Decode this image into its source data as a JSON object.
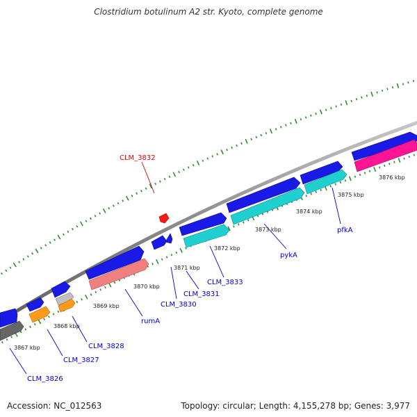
{
  "header": {
    "title": "Clostridium botulinum A2 str. Kyoto, complete genome"
  },
  "footer": {
    "accession": "Accession: NC_012563",
    "topology": "Topology: circular; Length: 4,155,278 bp; Genes: 3,977"
  },
  "colors": {
    "backbone": "#9a9a9a",
    "tick": "#2e8b2e",
    "gene_blue": "#1a1ae6",
    "gene_cyan": "#20d0d0",
    "gene_salmon": "#f08080",
    "gene_orange": "#ff9a1a",
    "gene_gray": "#666666",
    "gene_silver": "#c0c0c0",
    "gene_magenta": "#ff1493",
    "gene_red": "#ff1a1a",
    "label_blue": "#0000cc",
    "label_red": "#dd0000"
  },
  "kbp_labels": [
    "3867 kbp",
    "3868 kbp",
    "3869 kbp",
    "3870 kbp",
    "3871 kbp",
    "3872 kbp",
    "3873 kbp",
    "3874 kbp",
    "3875 kbp",
    "3876 kbp"
  ],
  "gene_labels": [
    "CLM_3832",
    "CLM_3833",
    "CLM_3831",
    "CLM_3830",
    "rumA",
    "CLM_3828",
    "CLM_3827",
    "CLM_3826",
    "pykA",
    "pfkA"
  ]
}
